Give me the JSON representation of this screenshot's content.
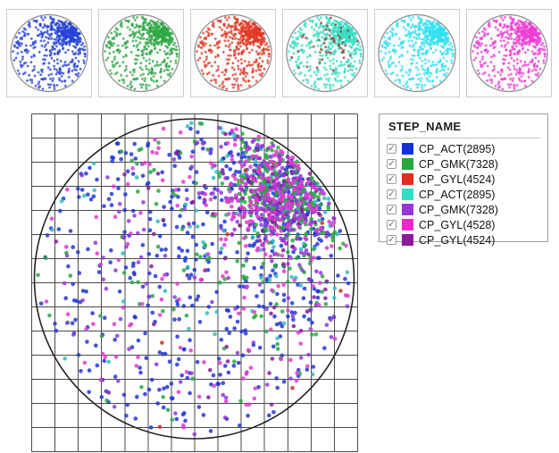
{
  "legend": {
    "title": "STEP_NAME",
    "check_glyph": "✓",
    "items": [
      {
        "label": "CP_ACT(2895)",
        "color": "#1130e4",
        "checked": true
      },
      {
        "label": "CP_GMK(7328)",
        "color": "#27a83c",
        "checked": true
      },
      {
        "label": "CP_GYL(4524)",
        "color": "#e42b1d",
        "checked": true
      },
      {
        "label": "CP_ACT(2895)",
        "color": "#2fdfc3",
        "checked": true
      },
      {
        "label": "CP_GMK(7328)",
        "color": "#9a34d8",
        "checked": true
      },
      {
        "label": "CP_GYL(4528)",
        "color": "#ee27cb",
        "checked": true
      },
      {
        "label": "CP_GYL(4524)",
        "color": "#8b1b9b",
        "checked": true
      }
    ]
  },
  "chart_data": {
    "type": "scatter",
    "subtype": "wafer-defect-map",
    "grid": {
      "cols": 14,
      "rows": 14,
      "line_color": "#4a4a4a"
    },
    "wafer_outline_color": "#222222",
    "cluster": {
      "center_x_frac": 0.55,
      "center_y_frac": -0.52,
      "core_sigma": 0.17,
      "halo_sigma": 0.4
    },
    "thumb_cluster": {
      "center_x_frac": 0.52,
      "center_y_frac": -0.5,
      "core_sigma": 0.15,
      "halo_sigma": 0.42
    },
    "thumbnails": [
      {
        "name": "act-blue",
        "color": "#2743d6",
        "uniform": 250,
        "halo": 130,
        "core": 160,
        "seed": 7
      },
      {
        "name": "gmk-green",
        "color": "#2fa844",
        "uniform": 250,
        "halo": 130,
        "core": 160,
        "seed": 7
      },
      {
        "name": "gyl-red",
        "color": "#e23a25",
        "uniform": 250,
        "halo": 130,
        "core": 160,
        "seed": 7
      },
      {
        "name": "act-teal",
        "color": "#35dec4",
        "uniform": 250,
        "halo": 130,
        "core": 160,
        "seed": 7,
        "overlay": {
          "name": "brown-defects",
          "color": "#96432b",
          "uniform": 12,
          "halo": 32,
          "core": 8,
          "seed": 11,
          "center": [
            0.25,
            -0.3
          ],
          "haloSigma": 0.3,
          "coreSigma": 0.12
        }
      },
      {
        "name": "act-cyan",
        "color": "#33dff2",
        "uniform": 250,
        "halo": 130,
        "core": 160,
        "seed": 7
      },
      {
        "name": "gyl-magenta",
        "color": "#ee3ed4",
        "uniform": 250,
        "halo": 130,
        "core": 160,
        "seed": 7
      }
    ],
    "main_series": [
      {
        "name": "act-blue",
        "color": "#2236d2",
        "uniform": 310,
        "halo": 140,
        "core": 100,
        "seed": 101
      },
      {
        "name": "act-teal",
        "color": "#2cc0bc",
        "uniform": 30,
        "halo": 40,
        "core": 50,
        "seed": 104
      },
      {
        "name": "gyl-red",
        "color": "#c03425",
        "uniform": 3,
        "halo": 5,
        "core": 8,
        "seed": 103
      },
      {
        "name": "gmk-green",
        "color": "#2aa843",
        "uniform": 55,
        "halo": 95,
        "core": 210,
        "seed": 102
      },
      {
        "name": "gyl-darkpurple",
        "color": "#8b1b9b",
        "uniform": 25,
        "halo": 35,
        "core": 45,
        "seed": 107
      },
      {
        "name": "gmk-purple",
        "color": "#9137d8",
        "uniform": 70,
        "halo": 75,
        "core": 95,
        "seed": 105
      },
      {
        "name": "gyl-magenta",
        "color": "#e03ad0",
        "uniform": 85,
        "halo": 85,
        "core": 125,
        "seed": 106
      }
    ]
  }
}
